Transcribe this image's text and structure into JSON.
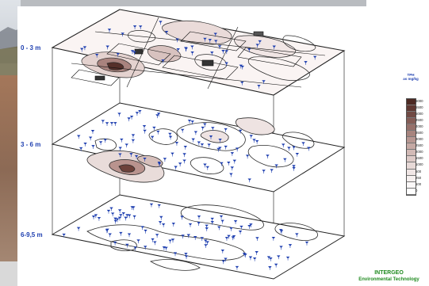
{
  "layers": [
    {
      "id": "top",
      "label": "0 - 3 m"
    },
    {
      "id": "mid",
      "label": "3 - 6 m"
    },
    {
      "id": "bottom",
      "label": "6-9,5 m"
    }
  ],
  "legend": {
    "title_line1": "TPH",
    "title_line2": "as mg/kg",
    "levels": [
      {
        "label": "6000",
        "color": "#4d2a24"
      },
      {
        "label": "5500",
        "color": "#5f3832"
      },
      {
        "label": "5000",
        "color": "#714a44"
      },
      {
        "label": "4500",
        "color": "#845c56"
      },
      {
        "label": "4000",
        "color": "#96706a"
      },
      {
        "label": "3500",
        "color": "#a7847e"
      },
      {
        "label": "3000",
        "color": "#b79792"
      },
      {
        "label": "2500",
        "color": "#c5a9a4"
      },
      {
        "label": "2000",
        "color": "#d2bab6"
      },
      {
        "label": "1500",
        "color": "#ddcac7"
      },
      {
        "label": "1000",
        "color": "#e7d9d7"
      },
      {
        "label": "500",
        "color": "#f0e6e5"
      },
      {
        "label": "250",
        "color": "#f6f0ef"
      },
      {
        "label": "100",
        "color": "#fbf8f8"
      },
      {
        "label": "0",
        "color": "#ffffff"
      }
    ]
  },
  "company": {
    "name": "INTERGEO",
    "subtitle": "Environmental Technology"
  },
  "colors": {
    "sample_marker": "#1e3fb0",
    "contour_line": "#2b2b2b",
    "frame_line": "#333333"
  }
}
